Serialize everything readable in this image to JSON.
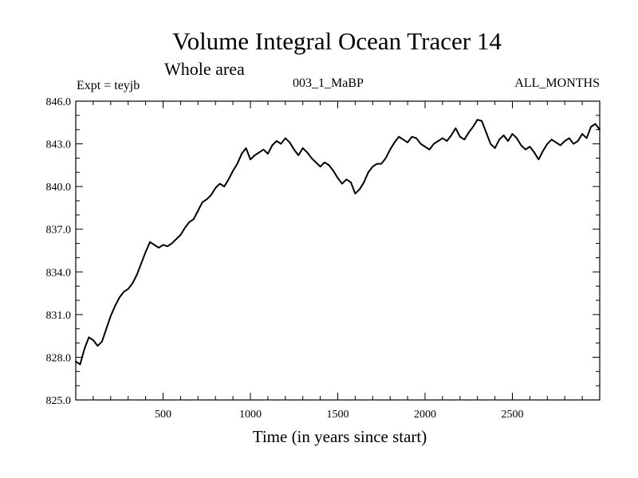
{
  "header": {
    "title": "Volume Integral Ocean Tracer 14",
    "subtitle": "Whole area",
    "experiment_label": "Expt = teyjb",
    "run_label": "003_1_MaBP",
    "season_label": "ALL_MONTHS"
  },
  "chart_data": {
    "type": "line",
    "title": "Volume Integral Ocean Tracer 14",
    "subtitle": "Whole area",
    "xlabel": "Time (in years since start)",
    "ylabel": "",
    "xlim": [
      0,
      3000
    ],
    "ylim": [
      825.0,
      846.0
    ],
    "x_ticks": [
      500,
      1000,
      1500,
      2000,
      2500
    ],
    "x_tick_labels": [
      "500",
      "1000",
      "1500",
      "2000",
      "2500"
    ],
    "y_ticks": [
      825.0,
      828.0,
      831.0,
      834.0,
      837.0,
      840.0,
      843.0,
      846.0
    ],
    "y_tick_labels": [
      "825.0",
      "828.0",
      "831.0",
      "834.0",
      "837.0",
      "840.0",
      "843.0",
      "846.0"
    ],
    "grid": false,
    "legend": "none",
    "series": [
      {
        "name": "Volume Integral Ocean Tracer 14",
        "color": "#000000",
        "x": [
          0,
          25,
          50,
          75,
          100,
          125,
          150,
          175,
          200,
          225,
          250,
          275,
          300,
          325,
          350,
          375,
          400,
          425,
          450,
          475,
          500,
          525,
          550,
          575,
          600,
          625,
          650,
          675,
          700,
          725,
          750,
          775,
          800,
          825,
          850,
          875,
          900,
          925,
          950,
          975,
          1000,
          1025,
          1050,
          1075,
          1100,
          1125,
          1150,
          1175,
          1200,
          1225,
          1250,
          1275,
          1300,
          1325,
          1350,
          1375,
          1400,
          1425,
          1450,
          1475,
          1500,
          1525,
          1550,
          1575,
          1600,
          1625,
          1650,
          1675,
          1700,
          1725,
          1750,
          1775,
          1800,
          1825,
          1850,
          1875,
          1900,
          1925,
          1950,
          1975,
          2000,
          2025,
          2050,
          2075,
          2100,
          2125,
          2150,
          2175,
          2200,
          2225,
          2250,
          2275,
          2300,
          2325,
          2350,
          2375,
          2400,
          2425,
          2450,
          2475,
          2500,
          2525,
          2550,
          2575,
          2600,
          2625,
          2650,
          2675,
          2700,
          2725,
          2750,
          2775,
          2800,
          2825,
          2850,
          2875,
          2900,
          2925,
          2950,
          2975,
          3000
        ],
        "values": [
          827.7,
          827.5,
          828.6,
          829.4,
          829.2,
          828.8,
          829.1,
          830.0,
          830.9,
          831.6,
          832.2,
          832.6,
          832.8,
          833.2,
          833.8,
          834.6,
          835.4,
          836.1,
          835.9,
          835.7,
          835.9,
          835.8,
          836.0,
          836.3,
          836.6,
          837.1,
          837.5,
          837.7,
          838.3,
          838.9,
          839.1,
          839.4,
          839.9,
          840.2,
          840.0,
          840.5,
          841.1,
          841.6,
          842.3,
          842.7,
          841.9,
          842.2,
          842.4,
          842.6,
          842.3,
          842.9,
          843.2,
          843.0,
          843.4,
          843.1,
          842.6,
          842.2,
          842.7,
          842.4,
          842.0,
          841.7,
          841.4,
          841.7,
          841.5,
          841.1,
          840.6,
          840.2,
          840.5,
          840.3,
          839.5,
          839.8,
          840.3,
          841.0,
          841.4,
          841.6,
          841.6,
          842.0,
          842.6,
          843.1,
          843.5,
          843.3,
          843.1,
          843.5,
          843.4,
          843.0,
          842.8,
          842.6,
          843.0,
          843.2,
          843.4,
          843.2,
          843.6,
          844.1,
          843.5,
          843.3,
          843.8,
          844.2,
          844.7,
          844.6,
          843.8,
          843.0,
          842.7,
          843.3,
          843.6,
          843.2,
          843.7,
          843.4,
          842.9,
          842.6,
          842.8,
          842.4,
          841.9,
          842.5,
          843.0,
          843.3,
          843.1,
          842.9,
          843.2,
          843.4,
          843.0,
          843.2,
          843.7,
          843.4,
          844.2,
          844.4,
          844.0
        ]
      }
    ]
  }
}
